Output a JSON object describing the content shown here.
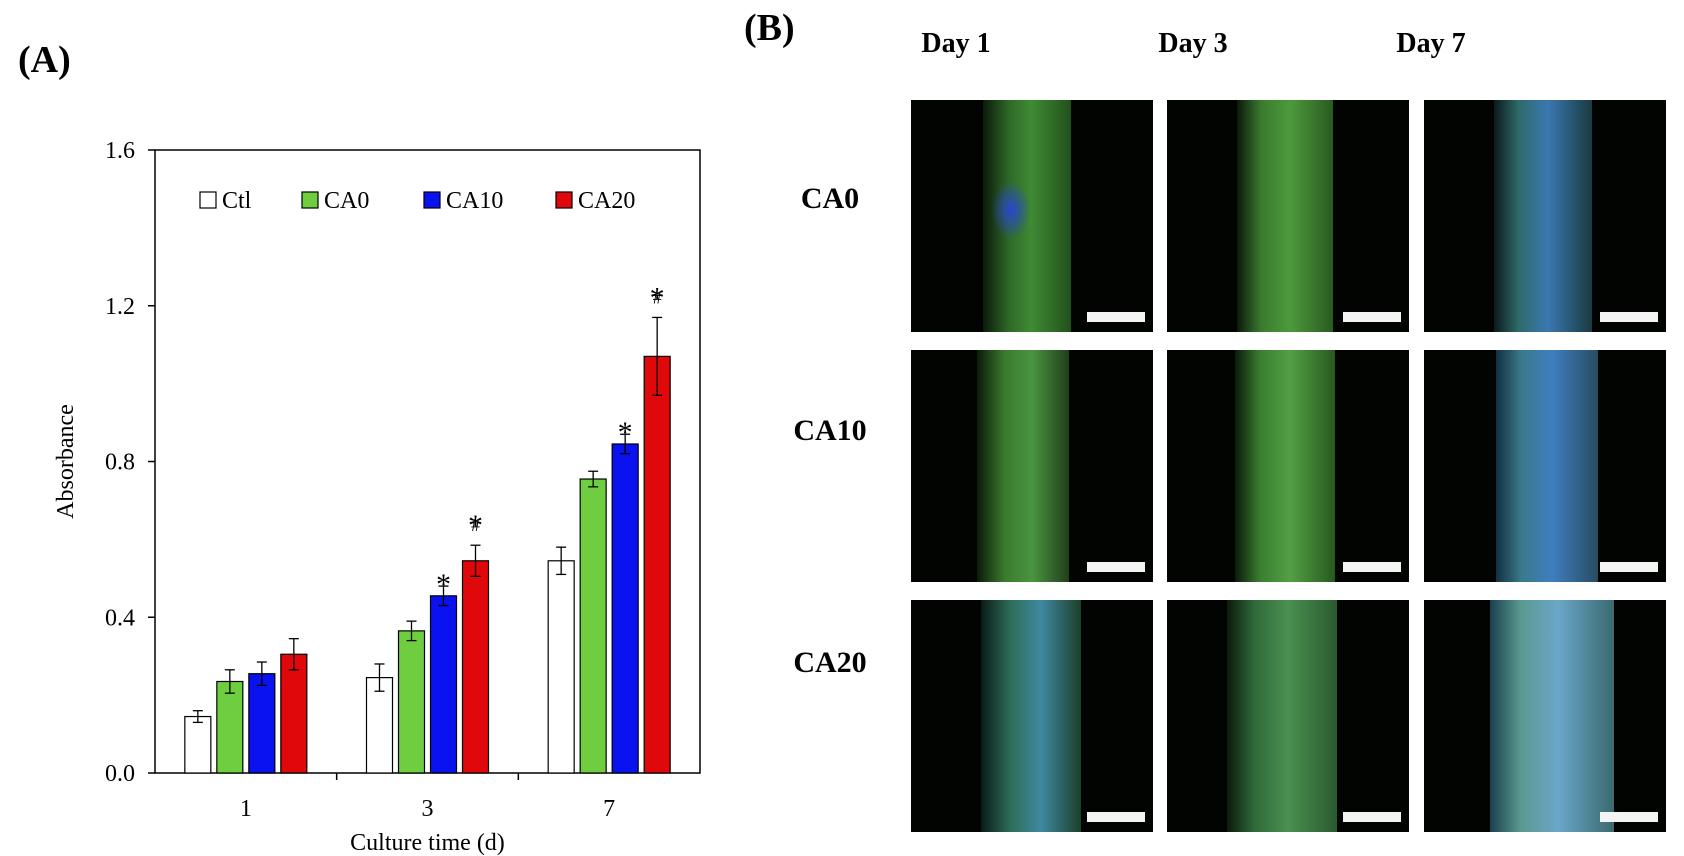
{
  "panels": {
    "a_label": "(A)",
    "b_label": "(B)"
  },
  "chart_data": {
    "type": "bar",
    "title": "",
    "xlabel": "Culture time (d)",
    "ylabel": "Absorbance",
    "categories": [
      "1",
      "3",
      "7"
    ],
    "ylim": [
      0,
      1.6
    ],
    "yticks": [
      "0.0",
      "0.4",
      "0.8",
      "1.2",
      "1.6"
    ],
    "legend_position": "top",
    "series": [
      {
        "name": "Ctl",
        "color": "#ffffff",
        "values": [
          0.145,
          0.245,
          0.545
        ],
        "errors": [
          0.015,
          0.035,
          0.035
        ]
      },
      {
        "name": "CA0",
        "color": "#6fce3f",
        "values": [
          0.235,
          0.365,
          0.755
        ],
        "errors": [
          0.03,
          0.025,
          0.02
        ]
      },
      {
        "name": "CA10",
        "color": "#0a12f0",
        "values": [
          0.255,
          0.455,
          0.845
        ],
        "errors": [
          0.03,
          0.025,
          0.025
        ]
      },
      {
        "name": "CA20",
        "color": "#e0080a",
        "values": [
          0.305,
          0.545,
          1.07
        ],
        "errors": [
          0.04,
          0.04,
          0.1
        ]
      }
    ],
    "annotations": [
      {
        "category": "3",
        "series": "CA10",
        "text": "*"
      },
      {
        "category": "3",
        "series": "CA20",
        "text": "*"
      },
      {
        "category": "3",
        "series": "CA20",
        "text": "#"
      },
      {
        "category": "7",
        "series": "CA10",
        "text": "*"
      },
      {
        "category": "7",
        "series": "CA20",
        "text": "*"
      },
      {
        "category": "7",
        "series": "CA20",
        "text": "#"
      }
    ]
  },
  "micrographs": {
    "day_labels": [
      "Day 1",
      "Day 3",
      "Day 7"
    ],
    "row_labels": [
      "CA0",
      "CA10",
      "CA20"
    ]
  }
}
